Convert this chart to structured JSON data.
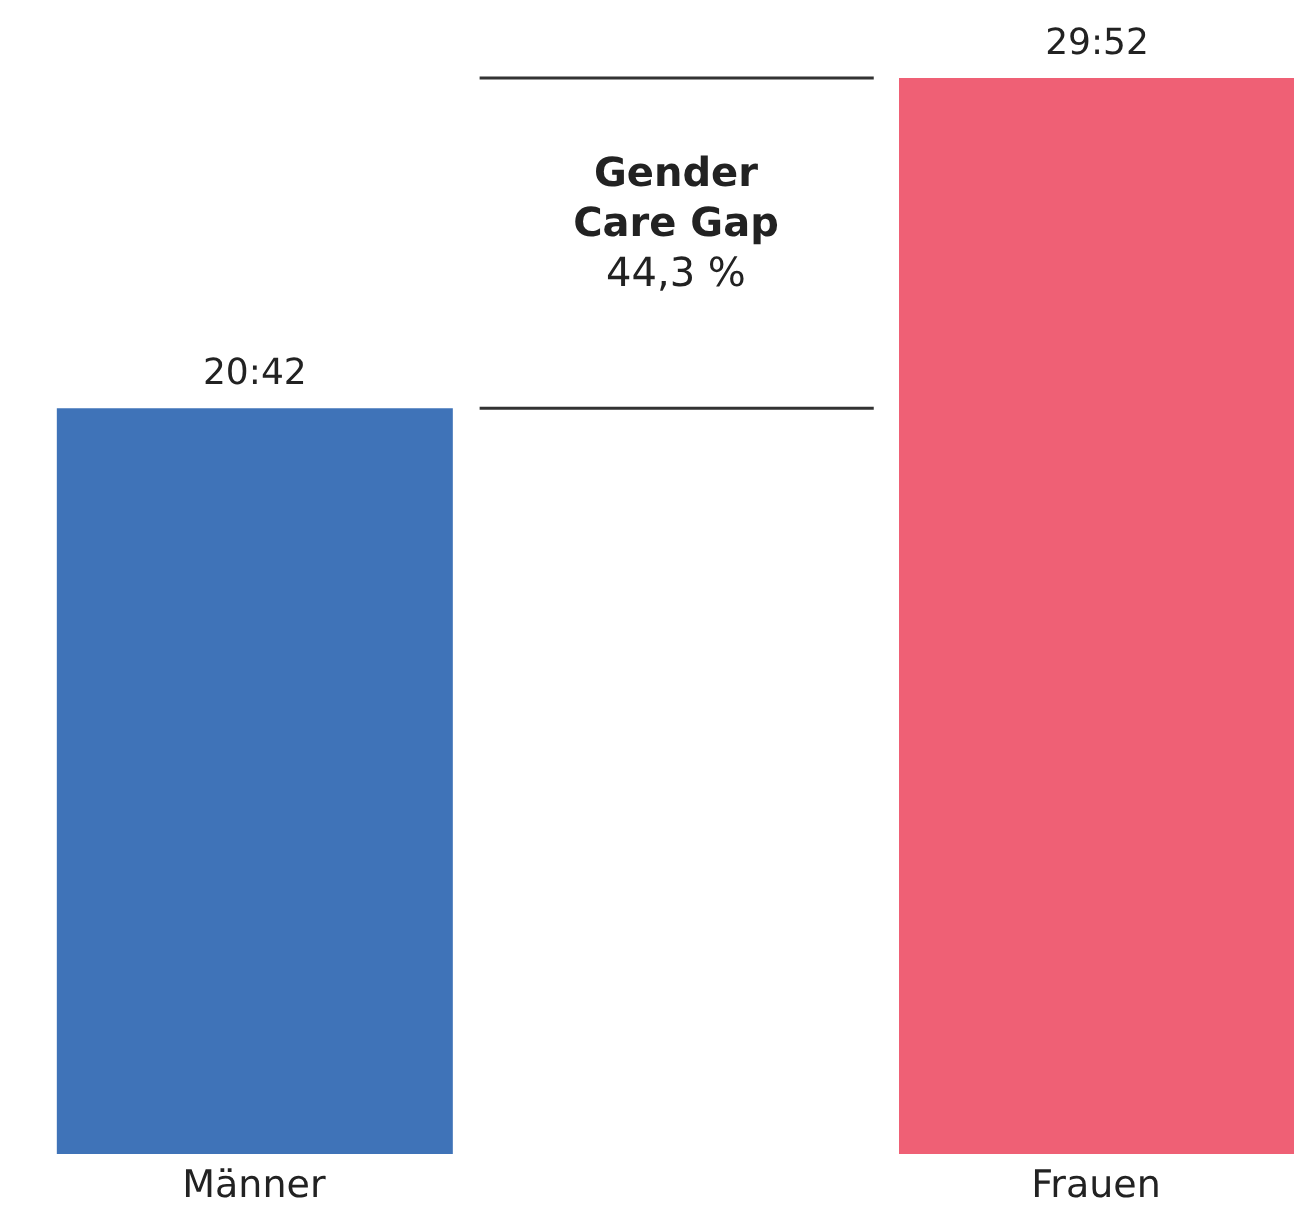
{
  "chart_data": {
    "type": "bar",
    "categories": [
      "Männer",
      "Frauen"
    ],
    "values": [
      20.7,
      29.8667
    ],
    "value_labels": [
      "20:42",
      "29:52"
    ],
    "colors": [
      "#3f73b8",
      "#ef6075"
    ],
    "ref_lines": [
      {
        "axis": "y",
        "value": 20.7,
        "color": "#333333"
      },
      {
        "axis": "y",
        "value": 29.8667,
        "color": "#333333"
      }
    ],
    "annotations": [
      "Gender Care Gap",
      "44,3 %"
    ]
  }
}
